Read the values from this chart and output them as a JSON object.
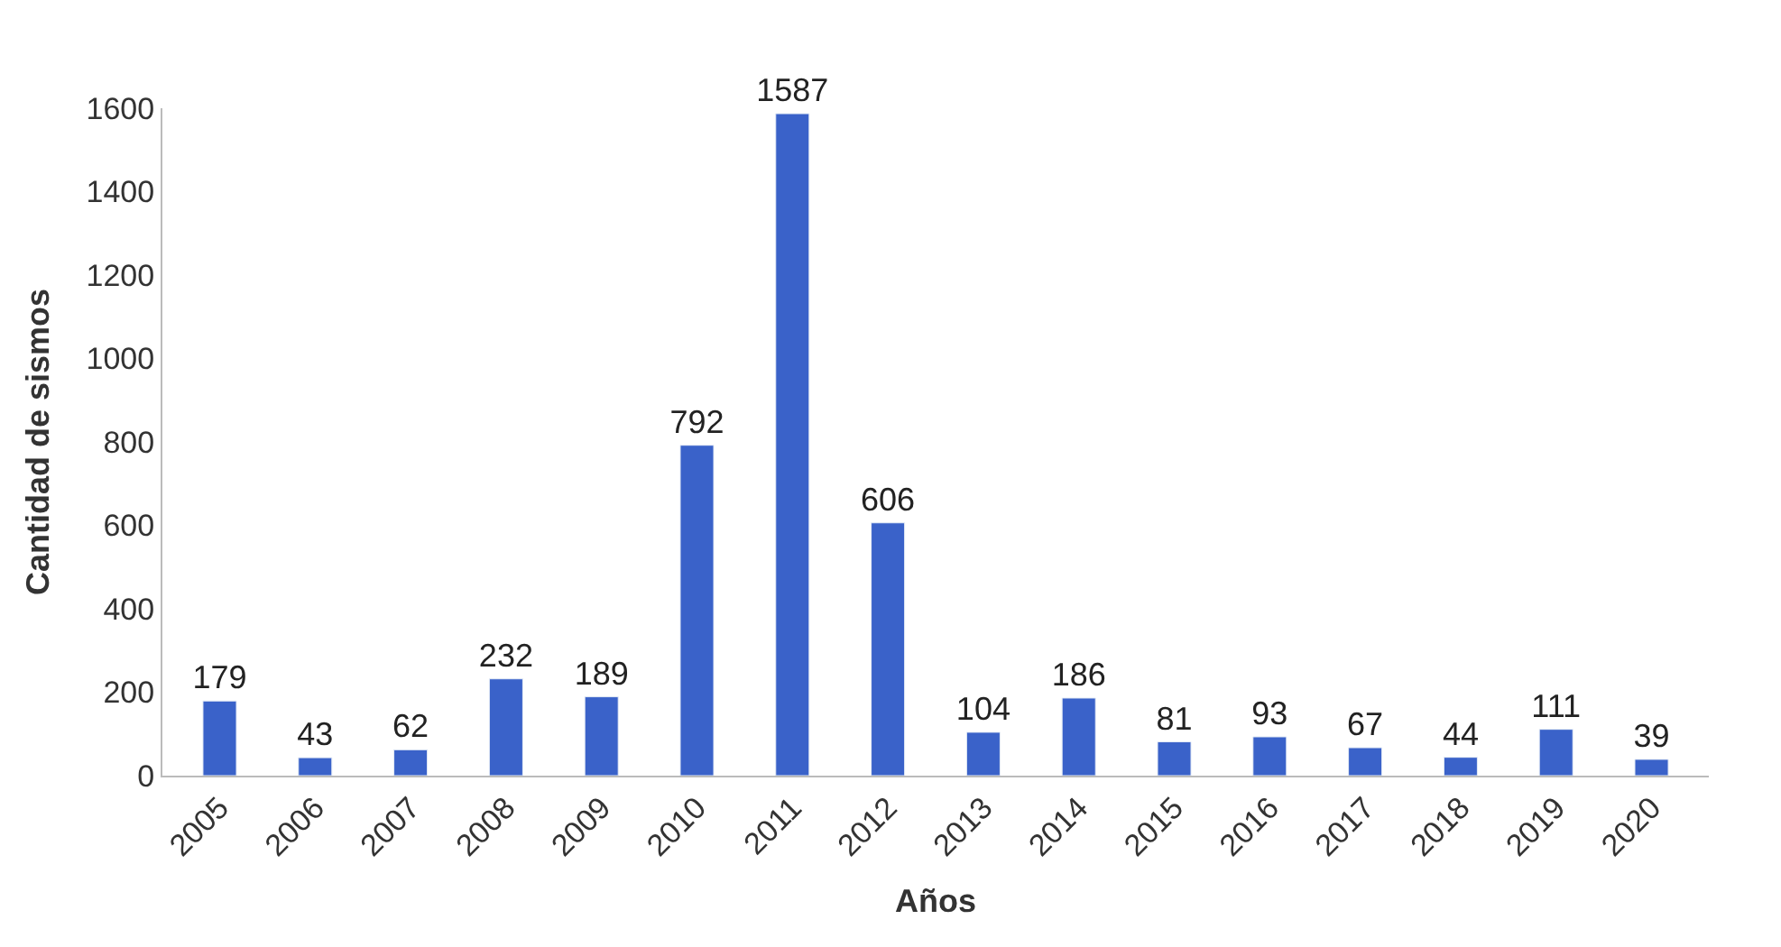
{
  "chart_data": {
    "type": "bar",
    "xlabel": "Años",
    "ylabel": "Cantidad de sismos",
    "categories": [
      "2005",
      "2006",
      "2007",
      "2008",
      "2009",
      "2010",
      "2011",
      "2012",
      "2013",
      "2014",
      "2015",
      "2016",
      "2017",
      "2018",
      "2019",
      "2020"
    ],
    "values": [
      179,
      43,
      62,
      232,
      189,
      792,
      1587,
      606,
      104,
      186,
      81,
      93,
      67,
      44,
      111,
      39
    ],
    "color": "#3a62c9",
    "ylim": [
      0,
      1600
    ],
    "yticks": [
      0,
      200,
      400,
      600,
      800,
      1000,
      1200,
      1400,
      1600
    ],
    "data_labels": true
  }
}
